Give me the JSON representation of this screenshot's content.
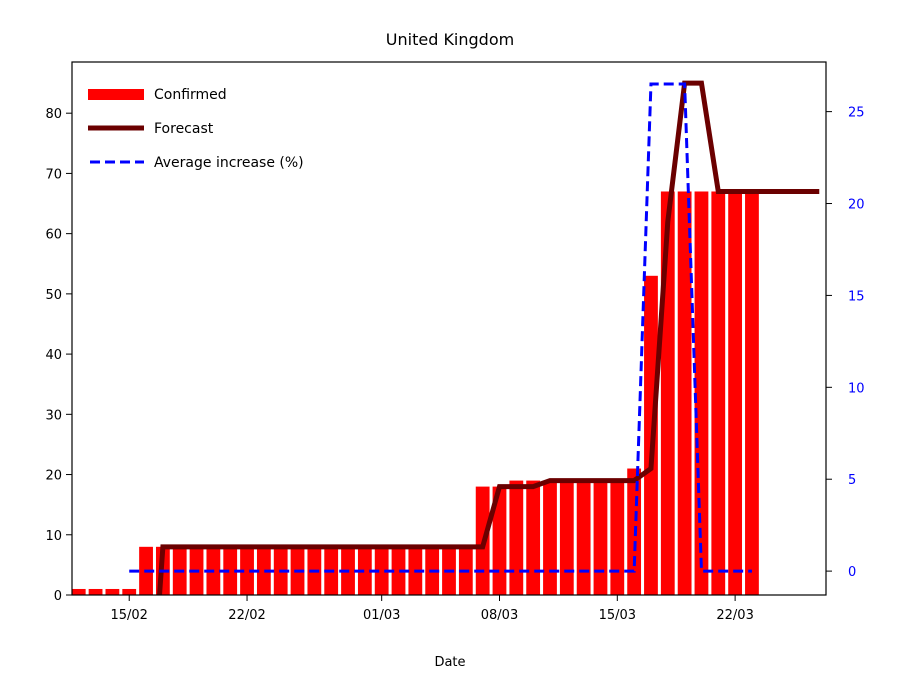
{
  "chart_data": {
    "type": "bar",
    "title": "United Kingdom",
    "xlabel": "Date",
    "ylabel": "",
    "ylabel_right": "",
    "ylim": [
      0,
      88.5
    ],
    "ylim_right": [
      -1.3,
      27.7
    ],
    "grid": false,
    "legend_position": "top-left",
    "x_ticks": [
      {
        "label": "15/02",
        "day": 15
      },
      {
        "label": "22/02",
        "day": 22
      },
      {
        "label": "01/03",
        "day": 30
      },
      {
        "label": "08/03",
        "day": 37
      },
      {
        "label": "15/03",
        "day": 44
      },
      {
        "label": "22/03",
        "day": 51
      }
    ],
    "y_ticks": [
      0,
      10,
      20,
      30,
      40,
      50,
      60,
      70,
      80
    ],
    "y_ticks_right": [
      0,
      5,
      10,
      15,
      20,
      25
    ],
    "colors": {
      "confirmed": "#ff0000",
      "forecast": "#6b0000",
      "average": "#0000ff",
      "right_axis": "#0000ff"
    },
    "series": [
      {
        "name": "Confirmed",
        "kind": "bar",
        "x": [
          12,
          13,
          14,
          15,
          16,
          17,
          18,
          19,
          20,
          21,
          22,
          23,
          24,
          25,
          26,
          27,
          28,
          29,
          30,
          31,
          32,
          33,
          34,
          35,
          36,
          37,
          38,
          39,
          40,
          41,
          42,
          43,
          44,
          45,
          46,
          47,
          48,
          49,
          50,
          51,
          52
        ],
        "values": [
          1,
          1,
          1,
          1,
          8,
          8,
          8,
          8,
          8,
          8,
          8,
          8,
          8,
          8,
          8,
          8,
          8,
          8,
          8,
          8,
          8,
          8,
          8,
          8,
          18,
          18,
          19,
          19,
          19,
          19,
          19,
          19,
          19,
          21,
          53,
          67,
          67,
          67,
          67,
          67,
          67
        ]
      },
      {
        "name": "Forecast",
        "kind": "line",
        "x": [
          12,
          13,
          14,
          15,
          16,
          16.8,
          17,
          18,
          19,
          20,
          21,
          22,
          23,
          24,
          25,
          26,
          27,
          28,
          29,
          30,
          31,
          32,
          33,
          34,
          35,
          36,
          37,
          38,
          39,
          40,
          41,
          42,
          43,
          44,
          45,
          46,
          47,
          48,
          49,
          50,
          51,
          52,
          53,
          54,
          55,
          56
        ],
        "values": [
          -6,
          -6,
          -6,
          -6,
          -6,
          0,
          8,
          8,
          8,
          8,
          8,
          8,
          8,
          8,
          8,
          8,
          8,
          8,
          8,
          8,
          8,
          8,
          8,
          8,
          8,
          8,
          18,
          18,
          18,
          19,
          19,
          19,
          19,
          19,
          19,
          21,
          62,
          85,
          85,
          67,
          67,
          67,
          67,
          67,
          67,
          67
        ]
      },
      {
        "name": "Average increase (%)",
        "kind": "line",
        "axis": "right",
        "dashed": true,
        "x": [
          15,
          16,
          17,
          18,
          19,
          20,
          21,
          22,
          23,
          24,
          25,
          26,
          27,
          28,
          29,
          30,
          31,
          32,
          33,
          34,
          35,
          36,
          37,
          38,
          39,
          40,
          41,
          42,
          43,
          44,
          45,
          46,
          47,
          48,
          49,
          50,
          51,
          52
        ],
        "values": [
          0,
          0,
          0,
          0,
          0,
          0,
          0,
          0,
          0,
          0,
          0,
          0,
          0,
          0,
          0,
          0,
          0,
          0,
          0,
          0,
          0,
          0,
          0,
          0,
          0,
          0,
          0,
          0,
          0,
          0,
          0,
          26.5,
          26.5,
          26.5,
          0,
          0,
          0,
          0
        ]
      }
    ]
  }
}
